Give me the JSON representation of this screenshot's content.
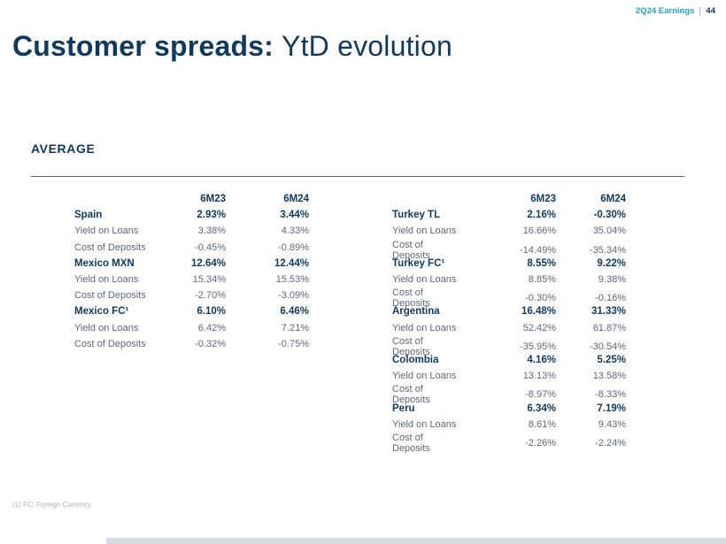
{
  "header": {
    "earnings_label": "2Q24 Earnings",
    "page_number": "44"
  },
  "title": {
    "bold": "Customer spreads:",
    "regular": "YtD evolution"
  },
  "section": {
    "label": "AVERAGE"
  },
  "tables": {
    "columns": [
      "6M23",
      "6M24"
    ],
    "left": [
      {
        "name": "Spain",
        "v1": "2.93%",
        "v2": "3.44%",
        "rows": [
          {
            "label": "Yield on Loans",
            "v1": "3.38%",
            "v2": "4.33%"
          },
          {
            "label": "Cost of Deposits",
            "v1": "-0.45%",
            "v2": "-0.89%"
          }
        ]
      },
      {
        "name": "Mexico MXN",
        "v1": "12.64%",
        "v2": "12.44%",
        "rows": [
          {
            "label": "Yield on Loans",
            "v1": "15.34%",
            "v2": "15.53%"
          },
          {
            "label": "Cost of Deposits",
            "v1": "-2.70%",
            "v2": "-3.09%"
          }
        ]
      },
      {
        "name": "Mexico FC¹",
        "v1": "6.10%",
        "v2": "6.46%",
        "rows": [
          {
            "label": "Yield on Loans",
            "v1": "6.42%",
            "v2": "7.21%"
          },
          {
            "label": "Cost of Deposits",
            "v1": "-0.32%",
            "v2": "-0.75%"
          }
        ]
      }
    ],
    "right": [
      {
        "name": "Turkey TL",
        "v1": "2.16%",
        "v2": "-0.30%",
        "rows": [
          {
            "label": "Yield on Loans",
            "v1": "16.66%",
            "v2": "35.04%"
          },
          {
            "label": "Cost of Deposits",
            "v1": "-14.49%",
            "v2": "-35.34%"
          }
        ]
      },
      {
        "name": "Turkey FC¹",
        "v1": "8.55%",
        "v2": "9.22%",
        "rows": [
          {
            "label": "Yield on Loans",
            "v1": "8.85%",
            "v2": "9.38%"
          },
          {
            "label": "Cost of Deposits",
            "v1": "-0.30%",
            "v2": "-0.16%"
          }
        ]
      },
      {
        "name": "Argentina",
        "v1": "16.48%",
        "v2": "31.33%",
        "rows": [
          {
            "label": "Yield on Loans",
            "v1": "52.42%",
            "v2": "61.87%"
          },
          {
            "label": "Cost of Deposits",
            "v1": "-35.95%",
            "v2": "-30.54%"
          }
        ]
      },
      {
        "name": "Colombia",
        "v1": "4.16%",
        "v2": "5.25%",
        "rows": [
          {
            "label": "Yield on Loans",
            "v1": "13.13%",
            "v2": "13.58%"
          },
          {
            "label": "Cost of Deposits",
            "v1": "-8.97%",
            "v2": "-8.33%"
          }
        ]
      },
      {
        "name": "Peru",
        "v1": "6.34%",
        "v2": "7.19%",
        "rows": [
          {
            "label": "Yield on Loans",
            "v1": "8.61%",
            "v2": "9.43%"
          },
          {
            "label": "Cost of Deposits",
            "v1": "-2.26%",
            "v2": "-2.24%"
          }
        ]
      }
    ]
  },
  "footnote": "(1) FC: Foreign Currency.",
  "colors": {
    "navy": "#0f3a5e",
    "teal_accent": "#1aa6c0",
    "sub_text": "#5d6872",
    "footnote_text": "#a9b1b8",
    "bottom_bar": "#d5dade"
  }
}
